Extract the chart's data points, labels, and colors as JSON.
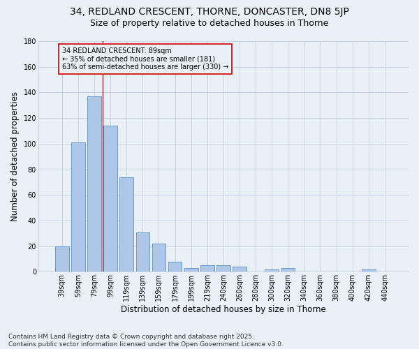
{
  "title1": "34, REDLAND CRESCENT, THORNE, DONCASTER, DN8 5JP",
  "title2": "Size of property relative to detached houses in Thorne",
  "xlabel": "Distribution of detached houses by size in Thorne",
  "ylabel": "Number of detached properties",
  "footer": "Contains HM Land Registry data © Crown copyright and database right 2025.\nContains public sector information licensed under the Open Government Licence v3.0.",
  "categories": [
    "39sqm",
    "59sqm",
    "79sqm",
    "99sqm",
    "119sqm",
    "139sqm",
    "159sqm",
    "179sqm",
    "199sqm",
    "219sqm",
    "240sqm",
    "260sqm",
    "280sqm",
    "300sqm",
    "320sqm",
    "340sqm",
    "360sqm",
    "380sqm",
    "400sqm",
    "420sqm",
    "440sqm"
  ],
  "values": [
    20,
    101,
    137,
    114,
    74,
    31,
    22,
    8,
    3,
    5,
    5,
    4,
    0,
    2,
    3,
    0,
    0,
    0,
    0,
    2,
    0
  ],
  "bar_color": "#aec6e8",
  "bar_edge_color": "#5a8fc2",
  "bg_color": "#eaf0f8",
  "grid_color": "#c8d4e4",
  "annotation_line1": "34 REDLAND CRESCENT: 89sqm",
  "annotation_line2": "← 35% of detached houses are smaller (181)",
  "annotation_line3": "63% of semi-detached houses are larger (330) →",
  "annotation_box_color": "#cc0000",
  "red_line_x": 2.5,
  "ylim": [
    0,
    180
  ],
  "yticks": [
    0,
    20,
    40,
    60,
    80,
    100,
    120,
    140,
    160,
    180
  ],
  "title1_fontsize": 10,
  "title2_fontsize": 9,
  "xlabel_fontsize": 8.5,
  "ylabel_fontsize": 8.5,
  "annotation_fontsize": 7,
  "footer_fontsize": 6.5,
  "tick_fontsize": 7
}
